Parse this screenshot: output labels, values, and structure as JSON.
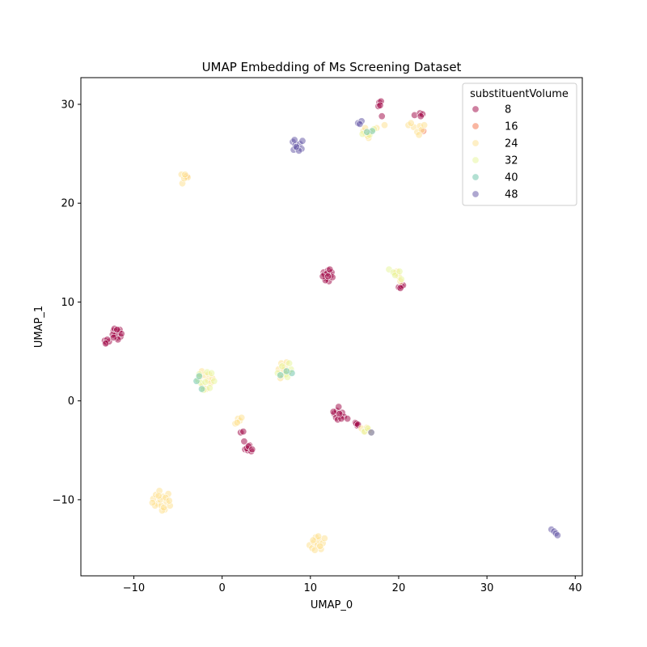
{
  "chart_data": {
    "type": "scatter",
    "title": "UMAP Embedding of Ms Screening Dataset",
    "xlabel": "UMAP_0",
    "ylabel": "UMAP_1",
    "xlim": [
      -16,
      40.8
    ],
    "ylim": [
      -17.7,
      32.7
    ],
    "xticks": [
      -10,
      0,
      10,
      20,
      30,
      40
    ],
    "yticks": [
      -10,
      0,
      10,
      20,
      30
    ],
    "xtick_labels": [
      "−10",
      "0",
      "10",
      "20",
      "30",
      "40"
    ],
    "ytick_labels": [
      "−10",
      "0",
      "10",
      "20",
      "30"
    ],
    "grid": false,
    "legend": {
      "title": "substituentVolume",
      "placement": "top-right",
      "entries": [
        {
          "label": "8",
          "color": "#9e0142"
        },
        {
          "label": "16",
          "color": "#f46d43"
        },
        {
          "label": "24",
          "color": "#fee08b"
        },
        {
          "label": "32",
          "color": "#e6f598"
        },
        {
          "label": "40",
          "color": "#66c2a5"
        },
        {
          "label": "48",
          "color": "#5e4fa2"
        }
      ]
    },
    "marker": {
      "alpha": 0.5,
      "edgecolor": "#ffffff"
    },
    "series": [
      {
        "name": "8",
        "color": "#9e0142",
        "points": [
          [
            -13.3,
            6.1
          ],
          [
            -13.1,
            5.9
          ],
          [
            -12.8,
            6.0
          ],
          [
            -13.0,
            6.2
          ],
          [
            -13.2,
            5.8
          ],
          [
            -12.3,
            7.1
          ],
          [
            -12.0,
            6.8
          ],
          [
            -11.7,
            7.0
          ],
          [
            -11.9,
            6.4
          ],
          [
            -12.1,
            6.6
          ],
          [
            -11.5,
            6.5
          ],
          [
            -11.8,
            6.2
          ],
          [
            -12.4,
            6.7
          ],
          [
            -11.6,
            7.2
          ],
          [
            -11.4,
            6.8
          ],
          [
            -12.2,
            7.3
          ],
          [
            -11.9,
            7.2
          ],
          [
            -12.3,
            6.4
          ],
          [
            11.5,
            13.0
          ],
          [
            11.8,
            12.4
          ],
          [
            12.0,
            13.2
          ],
          [
            12.3,
            12.7
          ],
          [
            11.6,
            12.8
          ],
          [
            12.1,
            12.1
          ],
          [
            12.4,
            13.0
          ],
          [
            11.9,
            12.9
          ],
          [
            11.7,
            12.2
          ],
          [
            12.5,
            12.5
          ],
          [
            11.4,
            12.6
          ],
          [
            12.2,
            13.3
          ],
          [
            12.0,
            12.6
          ],
          [
            20.0,
            11.5
          ],
          [
            20.3,
            11.6
          ],
          [
            20.5,
            11.7
          ],
          [
            20.2,
            11.4
          ],
          [
            17.8,
            30.2
          ],
          [
            18.0,
            30.3
          ],
          [
            17.7,
            29.8
          ],
          [
            17.9,
            29.9
          ],
          [
            18.1,
            28.8
          ],
          [
            21.8,
            28.9
          ],
          [
            22.4,
            29.1
          ],
          [
            22.7,
            29.0
          ],
          [
            22.5,
            28.8
          ],
          [
            12.7,
            -1.3
          ],
          [
            13.0,
            -1.0
          ],
          [
            13.2,
            -0.6
          ],
          [
            13.4,
            -1.5
          ],
          [
            12.9,
            -1.7
          ],
          [
            13.6,
            -1.2
          ],
          [
            13.1,
            -1.9
          ],
          [
            13.8,
            -1.6
          ],
          [
            14.2,
            -1.8
          ],
          [
            12.6,
            -1.1
          ],
          [
            13.5,
            -1.8
          ],
          [
            13.3,
            -1.3
          ],
          [
            15.1,
            -2.2
          ],
          [
            15.3,
            -2.5
          ],
          [
            15.2,
            -2.3
          ],
          [
            15.4,
            -2.4
          ],
          [
            2.1,
            -3.2
          ],
          [
            2.4,
            -3.1
          ],
          [
            2.5,
            -4.1
          ],
          [
            2.6,
            -4.9
          ],
          [
            2.9,
            -5.0
          ],
          [
            3.1,
            -4.5
          ],
          [
            3.3,
            -5.1
          ],
          [
            2.8,
            -4.8
          ],
          [
            3.0,
            -4.6
          ],
          [
            3.4,
            -4.9
          ]
        ]
      },
      {
        "name": "16",
        "color": "#f46d43",
        "points": [
          [
            22.8,
            27.3
          ],
          [
            -4.0,
            22.7
          ]
        ]
      },
      {
        "name": "24",
        "color": "#fee08b",
        "points": [
          [
            -4.6,
            22.9
          ],
          [
            -4.1,
            22.7
          ],
          [
            -4.5,
            22.0
          ],
          [
            -3.9,
            22.6
          ],
          [
            -4.3,
            22.5
          ],
          [
            -4.2,
            22.9
          ],
          [
            16.0,
            27.3
          ],
          [
            16.3,
            27.0
          ],
          [
            16.6,
            26.6
          ],
          [
            16.8,
            27.2
          ],
          [
            16.2,
            27.6
          ],
          [
            16.5,
            26.8
          ],
          [
            17.5,
            27.6
          ],
          [
            18.4,
            27.9
          ],
          [
            21.1,
            27.9
          ],
          [
            21.7,
            27.7
          ],
          [
            22.1,
            27.2
          ],
          [
            22.4,
            27.8
          ],
          [
            22.6,
            27.4
          ],
          [
            21.4,
            28.1
          ],
          [
            22.3,
            26.9
          ],
          [
            22.9,
            27.9
          ],
          [
            -7.8,
            -9.9
          ],
          [
            -7.5,
            -9.5
          ],
          [
            -7.3,
            -10.4
          ],
          [
            -7.1,
            -9.1
          ],
          [
            -6.9,
            -10.6
          ],
          [
            -6.7,
            -9.7
          ],
          [
            -6.5,
            -11.0
          ],
          [
            -6.3,
            -10.2
          ],
          [
            -6.1,
            -9.4
          ],
          [
            -5.9,
            -10.6
          ],
          [
            -7.0,
            -10.0
          ],
          [
            -6.8,
            -11.1
          ],
          [
            -6.4,
            -9.8
          ],
          [
            -7.6,
            -10.6
          ],
          [
            -6.0,
            -10.1
          ],
          [
            -7.2,
            -9.6
          ],
          [
            -6.6,
            -10.8
          ],
          [
            -7.9,
            -10.3
          ],
          [
            9.9,
            -14.6
          ],
          [
            10.2,
            -14.9
          ],
          [
            10.4,
            -14.3
          ],
          [
            10.6,
            -13.8
          ],
          [
            10.8,
            -14.6
          ],
          [
            11.0,
            -14.1
          ],
          [
            11.2,
            -15.0
          ],
          [
            11.4,
            -14.4
          ],
          [
            11.6,
            -13.9
          ],
          [
            10.5,
            -15.1
          ],
          [
            11.1,
            -14.7
          ],
          [
            10.9,
            -13.7
          ],
          [
            10.3,
            -14.1
          ],
          [
            1.5,
            -2.3
          ],
          [
            1.8,
            -1.8
          ],
          [
            2.0,
            -2.0
          ],
          [
            1.7,
            -2.2
          ],
          [
            2.2,
            -1.7
          ],
          [
            15.8,
            -2.8
          ],
          [
            16.2,
            -3.1
          ],
          [
            16.4,
            -2.7
          ],
          [
            16.6,
            -3.0
          ],
          [
            -2.5,
            2.4
          ],
          [
            -2.2,
            1.5
          ],
          [
            -2.0,
            2.6
          ],
          [
            -1.8,
            1.2
          ],
          [
            -1.6,
            2.1
          ],
          [
            -1.3,
            1.8
          ],
          [
            -2.3,
            3.0
          ],
          [
            -1.5,
            2.7
          ],
          [
            -1.1,
            2.3
          ],
          [
            6.4,
            3.2
          ],
          [
            6.7,
            3.8
          ],
          [
            6.9,
            2.6
          ],
          [
            7.1,
            3.4
          ],
          [
            7.3,
            3.9
          ],
          [
            7.5,
            2.9
          ],
          [
            6.6,
            2.3
          ],
          [
            7.0,
            3.1
          ],
          [
            19.8,
            13.1
          ],
          [
            20.0,
            12.6
          ],
          [
            20.2,
            12.1
          ],
          [
            19.6,
            12.9
          ]
        ]
      },
      {
        "name": "32",
        "color": "#e6f598",
        "points": [
          [
            16.7,
            26.9
          ],
          [
            17.2,
            27.5
          ],
          [
            15.9,
            27.0
          ],
          [
            18.9,
            13.3
          ],
          [
            19.4,
            13.0
          ],
          [
            19.6,
            12.7
          ],
          [
            20.1,
            13.1
          ],
          [
            20.3,
            12.3
          ],
          [
            -2.7,
            2.1
          ],
          [
            -2.4,
            1.8
          ],
          [
            -1.9,
            1.9
          ],
          [
            -1.7,
            2.9
          ],
          [
            -1.4,
            1.3
          ],
          [
            -0.9,
            2.0
          ],
          [
            -2.1,
            1.1
          ],
          [
            -1.2,
            2.8
          ],
          [
            -2.6,
            2.7
          ],
          [
            6.3,
            2.8
          ],
          [
            6.8,
            3.5
          ],
          [
            7.2,
            2.7
          ],
          [
            7.8,
            3.2
          ],
          [
            7.6,
            3.8
          ],
          [
            7.4,
            2.4
          ],
          [
            16.1,
            -3.1
          ],
          [
            16.5,
            -2.8
          ],
          [
            16.9,
            -3.2
          ]
        ]
      },
      {
        "name": "40",
        "color": "#66c2a5",
        "points": [
          [
            17.0,
            27.3
          ],
          [
            16.4,
            27.2
          ],
          [
            6.6,
            2.6
          ],
          [
            7.9,
            2.8
          ],
          [
            7.3,
            3.0
          ],
          [
            -2.9,
            2.0
          ],
          [
            -2.3,
            1.2
          ],
          [
            -2.6,
            2.5
          ]
        ]
      },
      {
        "name": "48",
        "color": "#5e4fa2",
        "points": [
          [
            15.4,
            28.1
          ],
          [
            15.8,
            28.3
          ],
          [
            15.6,
            28.0
          ],
          [
            8.0,
            26.2
          ],
          [
            8.3,
            25.9
          ],
          [
            8.1,
            25.4
          ],
          [
            8.5,
            25.6
          ],
          [
            8.8,
            26.0
          ],
          [
            9.0,
            25.5
          ],
          [
            9.1,
            26.3
          ],
          [
            8.7,
            25.3
          ],
          [
            8.4,
            25.7
          ],
          [
            8.2,
            26.4
          ],
          [
            16.9,
            -3.2
          ],
          [
            37.3,
            -13.0
          ],
          [
            37.6,
            -13.2
          ],
          [
            37.8,
            -13.4
          ],
          [
            38.0,
            -13.6
          ]
        ]
      }
    ]
  }
}
